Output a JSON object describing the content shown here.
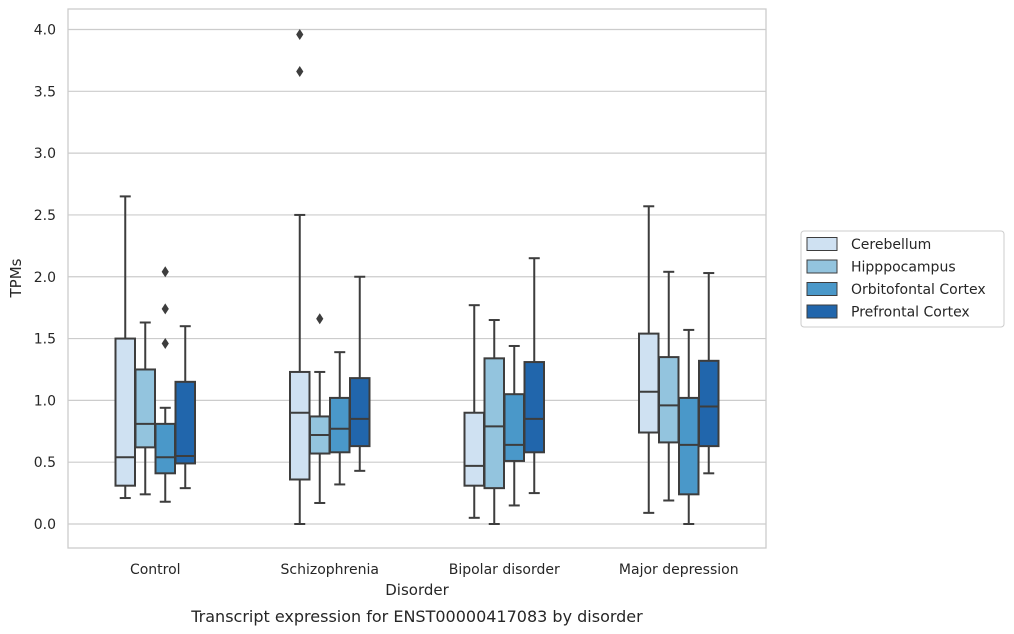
{
  "chart_data": {
    "type": "box",
    "title": "",
    "caption": "Transcript expression for ENST00000417083 by disorder",
    "xlabel": "Disorder",
    "ylabel": "TPMs",
    "ylim": [
      -0.18,
      4.17
    ],
    "yticks": [
      "0.0",
      "0.5",
      "1.0",
      "1.5",
      "2.0",
      "2.5",
      "3.0",
      "3.5",
      "4.0"
    ],
    "categories": [
      "Control",
      "Schizophrenia",
      "Bipolar disorder",
      "Major depression"
    ],
    "grid": "horizontal",
    "legend_position": "right",
    "series": [
      {
        "name": "Cerebellum",
        "color": "#cfe1f2",
        "boxes": [
          {
            "whislo": 0.21,
            "q1": 0.31,
            "med": 0.54,
            "q3": 1.5,
            "whishi": 2.65,
            "fliers": []
          },
          {
            "whislo": 0.0,
            "q1": 0.36,
            "med": 0.9,
            "q3": 1.23,
            "whishi": 2.5,
            "fliers": [
              3.66,
              3.96
            ]
          },
          {
            "whislo": 0.05,
            "q1": 0.31,
            "med": 0.47,
            "q3": 0.9,
            "whishi": 1.77,
            "fliers": []
          },
          {
            "whislo": 0.09,
            "q1": 0.74,
            "med": 1.07,
            "q3": 1.54,
            "whishi": 2.57,
            "fliers": []
          }
        ]
      },
      {
        "name": "Hipppocampus",
        "color": "#93c4de",
        "boxes": [
          {
            "whislo": 0.24,
            "q1": 0.62,
            "med": 0.81,
            "q3": 1.25,
            "whishi": 1.63,
            "fliers": []
          },
          {
            "whislo": 0.17,
            "q1": 0.57,
            "med": 0.72,
            "q3": 0.87,
            "whishi": 1.23,
            "fliers": [
              1.66
            ]
          },
          {
            "whislo": 0.0,
            "q1": 0.29,
            "med": 0.79,
            "q3": 1.34,
            "whishi": 1.65,
            "fliers": []
          },
          {
            "whislo": 0.19,
            "q1": 0.66,
            "med": 0.96,
            "q3": 1.35,
            "whishi": 2.04,
            "fliers": []
          }
        ]
      },
      {
        "name": "Orbitofontal Cortex",
        "color": "#4a98c9",
        "boxes": [
          {
            "whislo": 0.18,
            "q1": 0.41,
            "med": 0.54,
            "q3": 0.81,
            "whishi": 0.94,
            "fliers": [
              1.46,
              1.74,
              2.04
            ]
          },
          {
            "whislo": 0.32,
            "q1": 0.58,
            "med": 0.77,
            "q3": 1.02,
            "whishi": 1.39,
            "fliers": []
          },
          {
            "whislo": 0.15,
            "q1": 0.51,
            "med": 0.64,
            "q3": 1.05,
            "whishi": 1.44,
            "fliers": []
          },
          {
            "whislo": 0.0,
            "q1": 0.24,
            "med": 0.64,
            "q3": 1.02,
            "whishi": 1.57,
            "fliers": []
          }
        ]
      },
      {
        "name": "Prefrontal Cortex",
        "color": "#2166ac",
        "boxes": [
          {
            "whislo": 0.29,
            "q1": 0.49,
            "med": 0.55,
            "q3": 1.15,
            "whishi": 1.6,
            "fliers": []
          },
          {
            "whislo": 0.43,
            "q1": 0.63,
            "med": 0.85,
            "q3": 1.18,
            "whishi": 2.0,
            "fliers": []
          },
          {
            "whislo": 0.25,
            "q1": 0.58,
            "med": 0.85,
            "q3": 1.31,
            "whishi": 2.15,
            "fliers": []
          },
          {
            "whislo": 0.41,
            "q1": 0.63,
            "med": 0.95,
            "q3": 1.32,
            "whishi": 2.03,
            "fliers": []
          }
        ]
      }
    ],
    "colors": {
      "grid": "#cccccc",
      "frame": "#cccccc",
      "lines": "#3d3d3d"
    }
  }
}
